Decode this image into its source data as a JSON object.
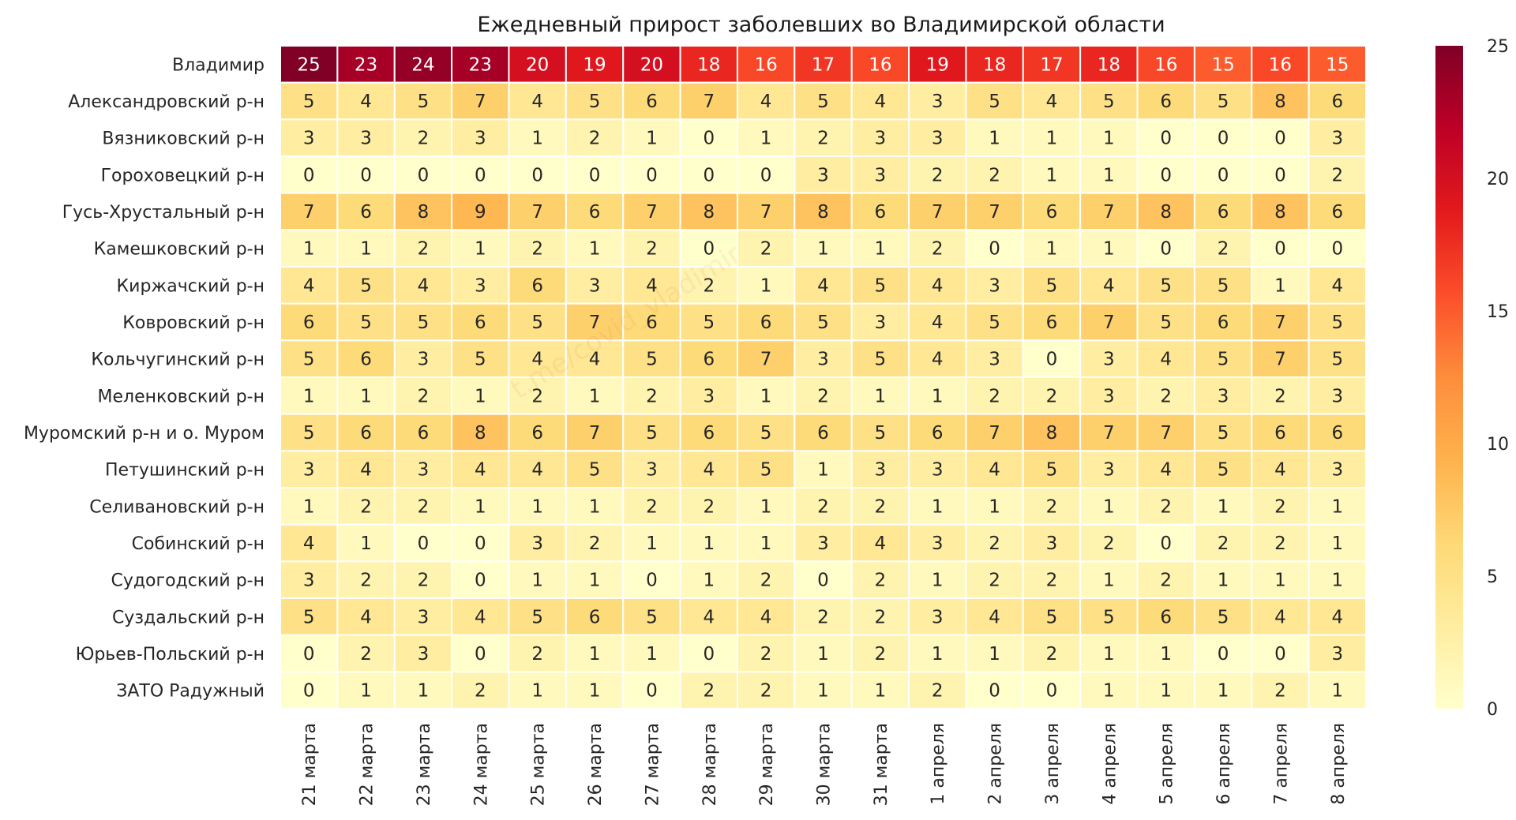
{
  "chart_data": {
    "type": "heatmap",
    "title": "Ежедневный прирост заболевших во Владимирской области",
    "xlabel": "",
    "ylabel": "",
    "x_categories": [
      "21 марта",
      "22 марта",
      "23 марта",
      "24 марта",
      "25 марта",
      "26 марта",
      "27 марта",
      "28 марта",
      "29 марта",
      "30 марта",
      "31 марта",
      "1 апреля",
      "2 апреля",
      "3 апреля",
      "4 апреля",
      "5 апреля",
      "6 апреля",
      "7 апреля",
      "8 апреля"
    ],
    "y_categories": [
      "Владимир",
      "Александровский р-н",
      "Вязниковский р-н",
      "Гороховецкий р-н",
      "Гусь-Хрустальный р-н",
      "Камешковский р-н",
      "Киржачский р-н",
      "Ковровский р-н",
      "Кольчугинский р-н",
      "Меленковский р-н",
      "Муромский р-н и о. Муром",
      "Петушинский р-н",
      "Селивановский р-н",
      "Собинский р-н",
      "Судогодский р-н",
      "Суздальский р-н",
      "Юрьев-Польский р-н",
      "ЗАТО Радужный"
    ],
    "values": [
      [
        25,
        23,
        24,
        23,
        20,
        19,
        20,
        18,
        16,
        17,
        16,
        19,
        18,
        17,
        18,
        16,
        15,
        16,
        15
      ],
      [
        5,
        4,
        5,
        7,
        4,
        5,
        6,
        7,
        4,
        5,
        4,
        3,
        5,
        4,
        5,
        6,
        5,
        8,
        6
      ],
      [
        3,
        3,
        2,
        3,
        1,
        2,
        1,
        0,
        1,
        2,
        3,
        3,
        1,
        1,
        1,
        0,
        0,
        0,
        3
      ],
      [
        0,
        0,
        0,
        0,
        0,
        0,
        0,
        0,
        0,
        3,
        3,
        2,
        2,
        1,
        1,
        0,
        0,
        0,
        2
      ],
      [
        7,
        6,
        8,
        9,
        7,
        6,
        7,
        8,
        7,
        8,
        6,
        7,
        7,
        6,
        7,
        8,
        6,
        8,
        6
      ],
      [
        1,
        1,
        2,
        1,
        2,
        1,
        2,
        0,
        2,
        1,
        1,
        2,
        0,
        1,
        1,
        0,
        2,
        0,
        0
      ],
      [
        4,
        5,
        4,
        3,
        6,
        3,
        4,
        2,
        1,
        4,
        5,
        4,
        3,
        5,
        4,
        5,
        5,
        1,
        4
      ],
      [
        6,
        5,
        5,
        6,
        5,
        7,
        6,
        5,
        6,
        5,
        3,
        4,
        5,
        6,
        7,
        5,
        6,
        7,
        5
      ],
      [
        5,
        6,
        3,
        5,
        4,
        4,
        5,
        6,
        7,
        3,
        5,
        4,
        3,
        0,
        3,
        4,
        5,
        7,
        5
      ],
      [
        1,
        1,
        2,
        1,
        2,
        1,
        2,
        3,
        1,
        2,
        1,
        1,
        2,
        2,
        3,
        2,
        3,
        2,
        3
      ],
      [
        5,
        6,
        6,
        8,
        6,
        7,
        5,
        6,
        5,
        6,
        5,
        6,
        7,
        8,
        7,
        7,
        5,
        6,
        6
      ],
      [
        3,
        4,
        3,
        4,
        4,
        5,
        3,
        4,
        5,
        1,
        3,
        3,
        4,
        5,
        3,
        4,
        5,
        4,
        3
      ],
      [
        1,
        2,
        2,
        1,
        1,
        1,
        2,
        2,
        1,
        2,
        2,
        1,
        1,
        2,
        1,
        2,
        1,
        2,
        1
      ],
      [
        4,
        1,
        0,
        0,
        3,
        2,
        1,
        1,
        1,
        3,
        4,
        3,
        2,
        3,
        2,
        0,
        2,
        2,
        1
      ],
      [
        3,
        2,
        2,
        0,
        1,
        1,
        0,
        1,
        2,
        0,
        2,
        1,
        2,
        2,
        1,
        2,
        1,
        1,
        1
      ],
      [
        5,
        4,
        3,
        4,
        5,
        6,
        5,
        4,
        4,
        2,
        2,
        3,
        4,
        5,
        5,
        6,
        5,
        4,
        4
      ],
      [
        0,
        2,
        3,
        0,
        2,
        1,
        1,
        0,
        2,
        1,
        2,
        1,
        1,
        2,
        1,
        1,
        0,
        0,
        3
      ],
      [
        0,
        1,
        1,
        2,
        1,
        1,
        0,
        2,
        2,
        1,
        1,
        2,
        0,
        0,
        1,
        1,
        1,
        2,
        1
      ]
    ],
    "vmin": 0,
    "vmax": 25,
    "colormap": "YlOrRd",
    "colorbar_ticks": [
      0,
      5,
      10,
      15,
      20,
      25
    ],
    "colorbar_placement": "right",
    "grid_lines_color": "#ffffff"
  },
  "watermark": "t.me/covid_vladimir"
}
